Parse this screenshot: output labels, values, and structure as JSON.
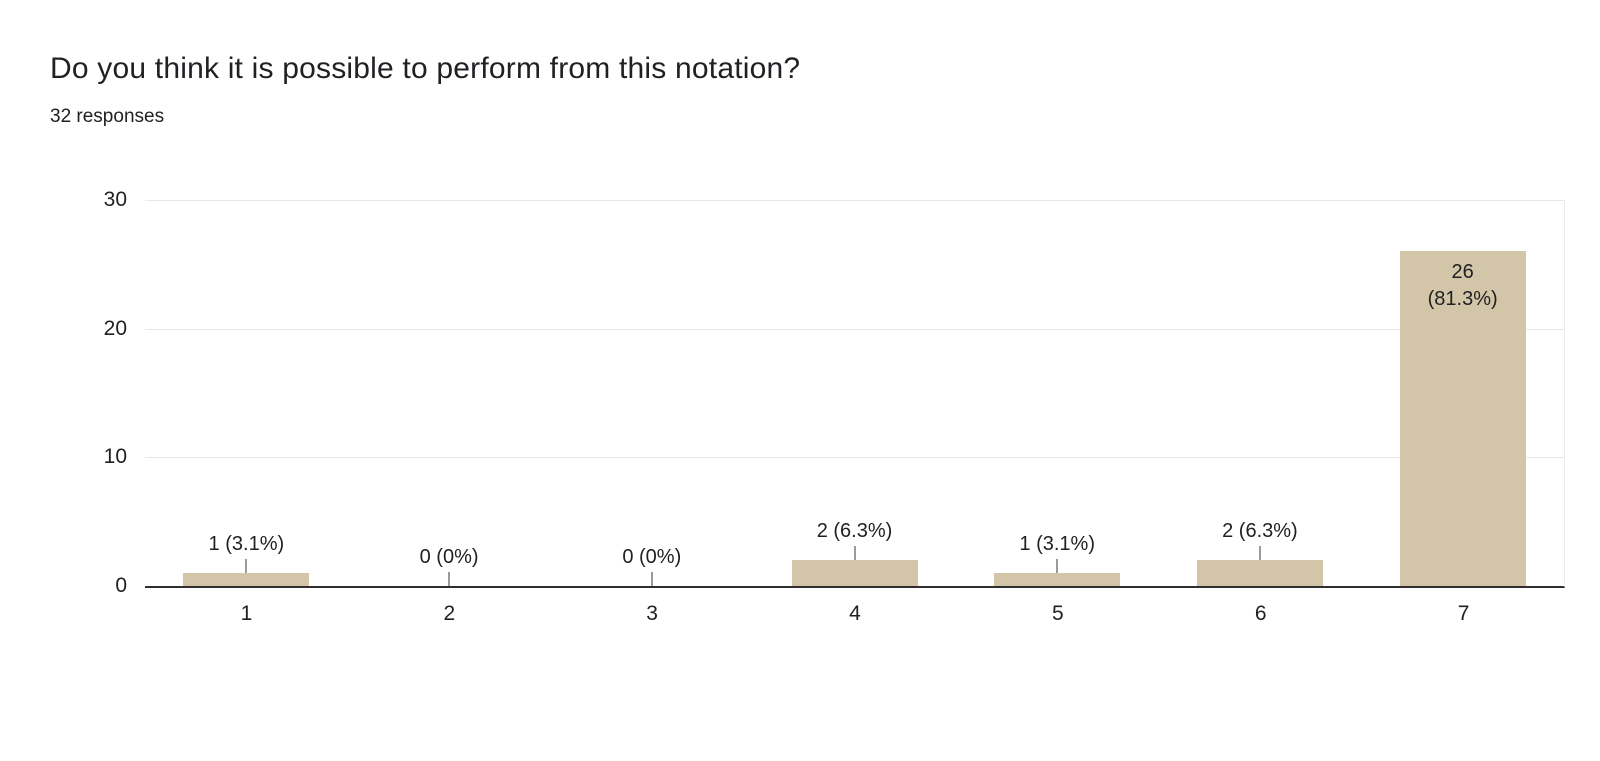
{
  "header": {
    "title": "Do you think it is possible to perform from this notation?",
    "subtitle": "32 responses"
  },
  "chart_data": {
    "type": "bar",
    "title": "Do you think it is possible to perform from this notation?",
    "subtitle": "32 responses",
    "categories": [
      "1",
      "2",
      "3",
      "4",
      "5",
      "6",
      "7"
    ],
    "values": [
      1,
      0,
      0,
      2,
      1,
      2,
      26
    ],
    "labels": [
      "1 (3.1%)",
      "0 (0%)",
      "0 (0%)",
      "2 (6.3%)",
      "1 (3.1%)",
      "2 (6.3%)",
      "26 (81.3%)"
    ],
    "inside_labels": {
      "6": [
        "26",
        "(81.3%)"
      ]
    },
    "ylim": [
      0,
      30
    ],
    "yticks": [
      0,
      10,
      20,
      30
    ],
    "xlabel": "",
    "ylabel": "",
    "grid": true,
    "legend": "none",
    "bar_color": "#d3c5a8",
    "axis_color": "#2f2f2f",
    "gridline_color": "#e8e8e8"
  }
}
